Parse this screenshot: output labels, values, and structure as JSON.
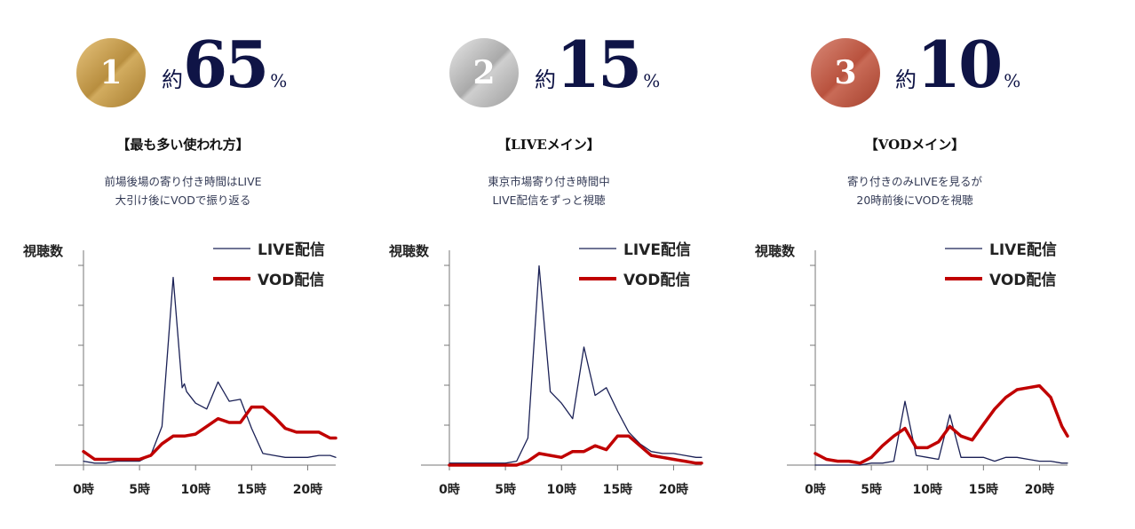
{
  "colors": {
    "navy": "#1b2156",
    "red": "#c00000",
    "gold": "#b88e3f",
    "silver": "#a9a9a9",
    "bronze": "#b9523e"
  },
  "panels": [
    {
      "rank": "1",
      "approx": "約",
      "percent": "65",
      "unit": "%",
      "heading": "【最も多い使われ方】",
      "description": [
        "前場後場の寄り付き時間はLIVE",
        "大引け後にVODで振り返る"
      ]
    },
    {
      "rank": "2",
      "approx": "約",
      "percent": "15",
      "unit": "%",
      "heading": "【LIVEメイン】",
      "description": [
        "東京市場寄り付き時間中",
        "LIVE配信をずっと視聴"
      ]
    },
    {
      "rank": "3",
      "approx": "約",
      "percent": "10",
      "unit": "%",
      "heading": "【VODメイン】",
      "description": [
        "寄り付きのみLIVEを見るが",
        "20時前後にVODを視聴"
      ]
    }
  ],
  "chart_data": [
    {
      "type": "line",
      "ylabel": "視聴数",
      "xlim": [
        0,
        22.5
      ],
      "ylim": [
        0,
        100
      ],
      "xticks": [
        0,
        5,
        10,
        15,
        20
      ],
      "xtick_labels": [
        "0時",
        "5時",
        "10時",
        "15時",
        "20時"
      ],
      "series": [
        {
          "name": "LIVE配信",
          "color": "#1b2156",
          "x": [
            0,
            1,
            2,
            3,
            4,
            5,
            6,
            7,
            8,
            8.8,
            9,
            9.2,
            10,
            11,
            12,
            13,
            14,
            15,
            16,
            17,
            18,
            19,
            20,
            21,
            22,
            22.5
          ],
          "y": [
            2,
            1,
            1,
            2,
            2,
            2,
            5,
            20,
            97,
            40,
            42,
            38,
            32,
            29,
            43,
            33,
            34,
            19,
            6,
            5,
            4,
            4,
            4,
            5,
            5,
            4
          ]
        },
        {
          "name": "VOD配信",
          "color": "#c00000",
          "x": [
            0,
            1,
            2,
            3,
            4,
            5,
            6,
            7,
            8,
            9,
            10,
            11,
            12,
            13,
            14,
            15,
            16,
            17,
            18,
            19,
            20,
            21,
            22,
            22.5
          ],
          "y": [
            7,
            3,
            3,
            3,
            3,
            3,
            5,
            11,
            15,
            15,
            16,
            20,
            24,
            22,
            22,
            30,
            30,
            25,
            19,
            17,
            17,
            17,
            14,
            14
          ]
        }
      ]
    },
    {
      "type": "line",
      "ylabel": "視聴数",
      "xlim": [
        0,
        22.5
      ],
      "ylim": [
        0,
        100
      ],
      "xticks": [
        0,
        5,
        10,
        15,
        20
      ],
      "xtick_labels": [
        "0時",
        "5時",
        "10時",
        "15時",
        "20時"
      ],
      "series": [
        {
          "name": "LIVE配信",
          "color": "#1b2156",
          "x": [
            0,
            1,
            2,
            3,
            4,
            5,
            6,
            7,
            8,
            9,
            10,
            11,
            12,
            13,
            14,
            15,
            16,
            17,
            18,
            19,
            20,
            21,
            22,
            22.5
          ],
          "y": [
            1,
            1,
            1,
            1,
            1,
            1,
            2,
            14,
            103,
            38,
            32,
            24,
            61,
            36,
            40,
            28,
            17,
            11,
            7,
            6,
            6,
            5,
            4,
            4
          ]
        },
        {
          "name": "VOD配信",
          "color": "#c00000",
          "x": [
            0,
            1,
            2,
            3,
            4,
            5,
            6,
            7,
            8,
            9,
            10,
            11,
            12,
            13,
            14,
            15,
            16,
            17,
            18,
            19,
            20,
            21,
            22,
            22.5
          ],
          "y": [
            0,
            0,
            0,
            0,
            0,
            0,
            0,
            2,
            6,
            5,
            4,
            7,
            7,
            10,
            8,
            15,
            15,
            10,
            5,
            4,
            3,
            2,
            1,
            1
          ]
        }
      ]
    },
    {
      "type": "line",
      "ylabel": "視聴数",
      "xlim": [
        0,
        22.5
      ],
      "ylim": [
        0,
        100
      ],
      "xticks": [
        0,
        5,
        10,
        15,
        20
      ],
      "xtick_labels": [
        "0時",
        "5時",
        "10時",
        "15時",
        "20時"
      ],
      "series": [
        {
          "name": "LIVE配信",
          "color": "#1b2156",
          "x": [
            0,
            1,
            2,
            3,
            4,
            5,
            6,
            7,
            8,
            9,
            10,
            11,
            12,
            13,
            14,
            15,
            16,
            17,
            18,
            19,
            20,
            21,
            22,
            22.5
          ],
          "y": [
            0,
            0,
            0,
            0,
            0,
            1,
            1,
            2,
            33,
            5,
            4,
            3,
            26,
            4,
            4,
            4,
            2,
            4,
            4,
            3,
            2,
            2,
            1,
            1
          ]
        },
        {
          "name": "VOD配信",
          "color": "#c00000",
          "x": [
            0,
            1,
            2,
            3,
            4,
            5,
            6,
            7,
            8,
            9,
            10,
            11,
            12,
            13,
            14,
            15,
            16,
            17,
            18,
            19,
            20,
            21,
            22,
            22.5
          ],
          "y": [
            6,
            3,
            2,
            2,
            1,
            4,
            10,
            15,
            19,
            9,
            9,
            12,
            20,
            15,
            13,
            21,
            29,
            35,
            39,
            40,
            41,
            35,
            20,
            15
          ]
        }
      ]
    }
  ]
}
